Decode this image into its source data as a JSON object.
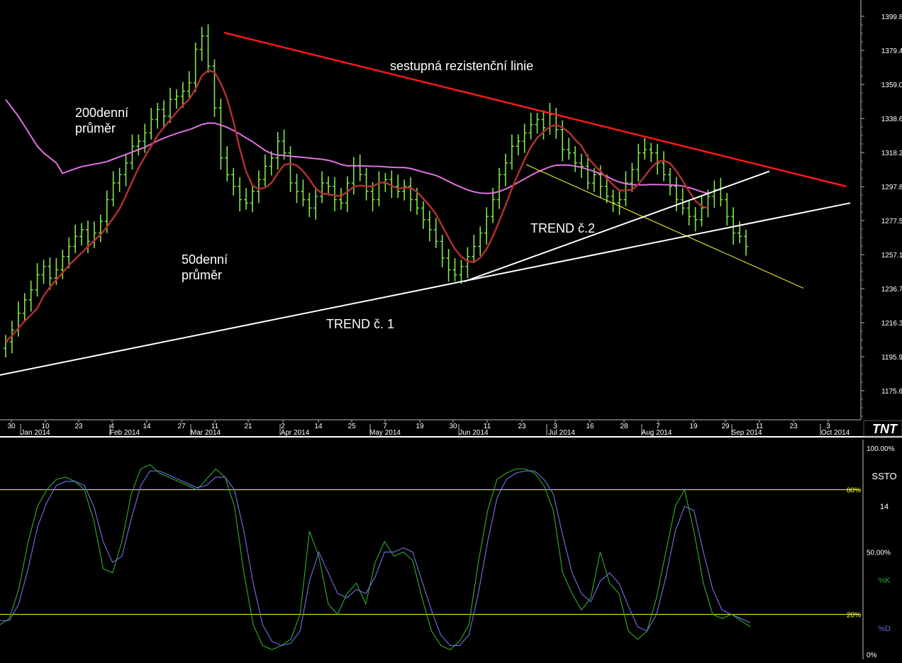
{
  "logo_text": "TNT",
  "colors": {
    "background": "#000000",
    "bars": "#7fe84a",
    "ma50": "#b03030",
    "ma200": "#e070e0",
    "resistance": "#ff1a1a",
    "trend": "#ffffff",
    "channel": "#ffff33",
    "stoch_k": "#2aa22a",
    "stoch_d": "#6a6ad8",
    "stoch_level": "#ffff33",
    "axis_text": "#ffffff"
  },
  "chart_data": [
    {
      "type": "ohlc",
      "y_ticks": [
        1399.8,
        1379.4,
        1359.0,
        1338.6,
        1318.2,
        1297.8,
        1277.5,
        1257.1,
        1236.7,
        1216.3,
        1195.9,
        1175.6
      ],
      "ylim": [
        1167,
        1405
      ],
      "x_day_ticks": [
        "30",
        "10",
        "23",
        "4",
        "14",
        "27",
        "11",
        "21",
        "2",
        "14",
        "25",
        "7",
        "19",
        "30",
        "11",
        "23",
        "3",
        "16",
        "28",
        "7",
        "19",
        "29",
        "11",
        "23",
        "3"
      ],
      "x_month_labels": [
        "Jan 2014",
        "Feb 2014",
        "Mar 2014",
        "Apr 2014",
        "May 2014",
        "Jun 2014",
        "Jul 2014",
        "Aug 2014",
        "Sep 2014",
        "Oct 2014"
      ],
      "close_series": [
        1205,
        1212,
        1222,
        1230,
        1236,
        1245,
        1250,
        1243,
        1248,
        1256,
        1262,
        1268,
        1272,
        1265,
        1270,
        1277,
        1290,
        1300,
        1305,
        1312,
        1322,
        1325,
        1330,
        1338,
        1344,
        1340,
        1350,
        1352,
        1355,
        1360,
        1380,
        1388,
        1370,
        1345,
        1315,
        1305,
        1298,
        1290,
        1288,
        1295,
        1302,
        1310,
        1315,
        1325,
        1318,
        1300,
        1295,
        1290,
        1285,
        1292,
        1300,
        1298,
        1290,
        1288,
        1300,
        1310,
        1305,
        1295,
        1290,
        1300,
        1302,
        1298,
        1295,
        1298,
        1290,
        1285,
        1278,
        1272,
        1265,
        1255,
        1248,
        1245,
        1250,
        1256,
        1262,
        1270,
        1280,
        1290,
        1305,
        1312,
        1322,
        1325,
        1330,
        1335,
        1338,
        1333,
        1341,
        1332,
        1320,
        1318,
        1312,
        1310,
        1300,
        1305,
        1298,
        1292,
        1288,
        1290,
        1300,
        1308,
        1318,
        1320,
        1318,
        1312,
        1305,
        1298,
        1290,
        1285,
        1280,
        1278,
        1285,
        1292,
        1296,
        1290,
        1280,
        1270,
        1268,
        1262
      ],
      "annotations": [
        "sestupná rezistenční linie",
        "200denní průměr",
        "50denní průměr",
        "TREND č. 1",
        "TREND č.2"
      ]
    },
    {
      "type": "line",
      "name": "SSTO",
      "period": "14",
      "y_labels": [
        "100.00%",
        "80%",
        "50.00%",
        "20%",
        "0%"
      ],
      "levels": [
        80,
        20
      ],
      "ylim": [
        0,
        100
      ],
      "series": [
        {
          "name": "%K",
          "values": [
            15,
            18,
            32,
            55,
            72,
            80,
            85,
            86,
            84,
            80,
            65,
            42,
            40,
            55,
            78,
            90,
            92,
            88,
            86,
            84,
            82,
            80,
            85,
            90,
            86,
            72,
            40,
            15,
            5,
            3,
            5,
            8,
            20,
            60,
            48,
            25,
            20,
            30,
            35,
            25,
            45,
            55,
            48,
            50,
            46,
            28,
            12,
            5,
            3,
            7,
            15,
            45,
            70,
            85,
            88,
            90,
            90,
            88,
            82,
            70,
            40,
            30,
            22,
            28,
            50,
            35,
            30,
            12,
            8,
            12,
            28,
            50,
            72,
            80,
            60,
            35,
            20,
            18,
            20,
            17,
            14
          ]
        },
        {
          "name": "%D",
          "values": [
            17,
            17,
            25,
            42,
            62,
            74,
            82,
            84,
            84,
            82,
            72,
            55,
            45,
            48,
            66,
            82,
            89,
            89,
            87,
            85,
            83,
            81,
            82,
            86,
            86,
            80,
            60,
            35,
            15,
            7,
            5,
            6,
            12,
            36,
            50,
            40,
            30,
            28,
            32,
            30,
            38,
            50,
            50,
            52,
            50,
            36,
            22,
            10,
            5,
            5,
            10,
            30,
            55,
            76,
            85,
            88,
            89,
            89,
            85,
            78,
            58,
            40,
            30,
            26,
            36,
            40,
            35,
            24,
            14,
            12,
            20,
            38,
            60,
            72,
            70,
            50,
            32,
            22,
            20,
            18,
            16
          ]
        }
      ]
    }
  ]
}
